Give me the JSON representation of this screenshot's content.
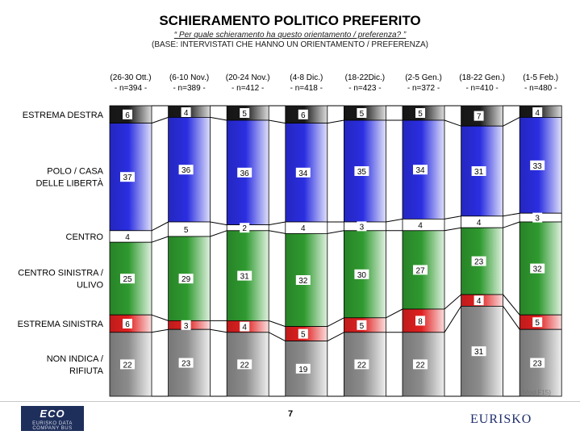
{
  "header": {
    "title": "SCHIERAMENTO POLITICO PREFERITO",
    "question": "“ Per quale schieramento ha questo orientamento / preferenza? ”",
    "base": "(BASE: INTERVISTATI CHE HANNO UN ORIENTAMENTO / PREFERENZA)"
  },
  "footer": {
    "page_number": "7",
    "logo_left": "ECO",
    "logo_left_sub": "EURISKO DATA COMPANY BUS",
    "logo_right": "EURISKO",
    "note": "(Mod.F15)"
  },
  "chart_data": {
    "type": "bar",
    "stacked": true,
    "normalized": true,
    "categories": [
      {
        "period": "(26-30 Ott.)",
        "n": "- n=394 -"
      },
      {
        "period": "(6-10 Nov.)",
        "n": "- n=389 -"
      },
      {
        "period": "(20-24 Nov.)",
        "n": "- n=412 -"
      },
      {
        "period": "(4-8 Dic.)",
        "n": "- n=418 -"
      },
      {
        "period": "(18-22Dic.)",
        "n": "- n=423 -"
      },
      {
        "period": "(2-5 Gen.)",
        "n": "- n=372 -"
      },
      {
        "period": "(18-22 Gen.)",
        "n": "- n=410 -"
      },
      {
        "period": "(1-5 Feb.)",
        "n": "- n=480 -"
      }
    ],
    "series": [
      {
        "name": "ESTREMA DESTRA",
        "label_lines": [
          "ESTREMA DESTRA"
        ],
        "color": "#1a1a1a",
        "values": [
          6,
          4,
          5,
          6,
          5,
          5,
          7,
          4
        ]
      },
      {
        "name": "POLO / CASA DELLE LIBERTÀ",
        "label_lines": [
          "POLO / CASA",
          "DELLE LIBERTÀ"
        ],
        "color": "#2a2ee0",
        "values": [
          37,
          36,
          36,
          34,
          35,
          34,
          31,
          33
        ]
      },
      {
        "name": "CENTRO",
        "label_lines": [
          "CENTRO"
        ],
        "color": "#ffffff",
        "values": [
          4,
          5,
          2,
          4,
          3,
          4,
          4,
          3
        ]
      },
      {
        "name": "CENTRO SINISTRA / ULIVO",
        "label_lines": [
          "CENTRO SINISTRA /",
          "ULIVO"
        ],
        "color": "#2f9a2f",
        "values": [
          25,
          29,
          31,
          32,
          30,
          27,
          23,
          32
        ]
      },
      {
        "name": "ESTREMA SINISTRA",
        "label_lines": [
          "ESTREMA SINISTRA"
        ],
        "color": "#e02020",
        "values": [
          6,
          3,
          4,
          5,
          5,
          8,
          4,
          5
        ]
      },
      {
        "name": "NON INDICA / RIFIUTA",
        "label_lines": [
          "NON INDICA /",
          "RIFIUTA"
        ],
        "color": "#8c8c8c",
        "values": [
          22,
          23,
          22,
          19,
          22,
          22,
          31,
          23
        ]
      }
    ]
  }
}
